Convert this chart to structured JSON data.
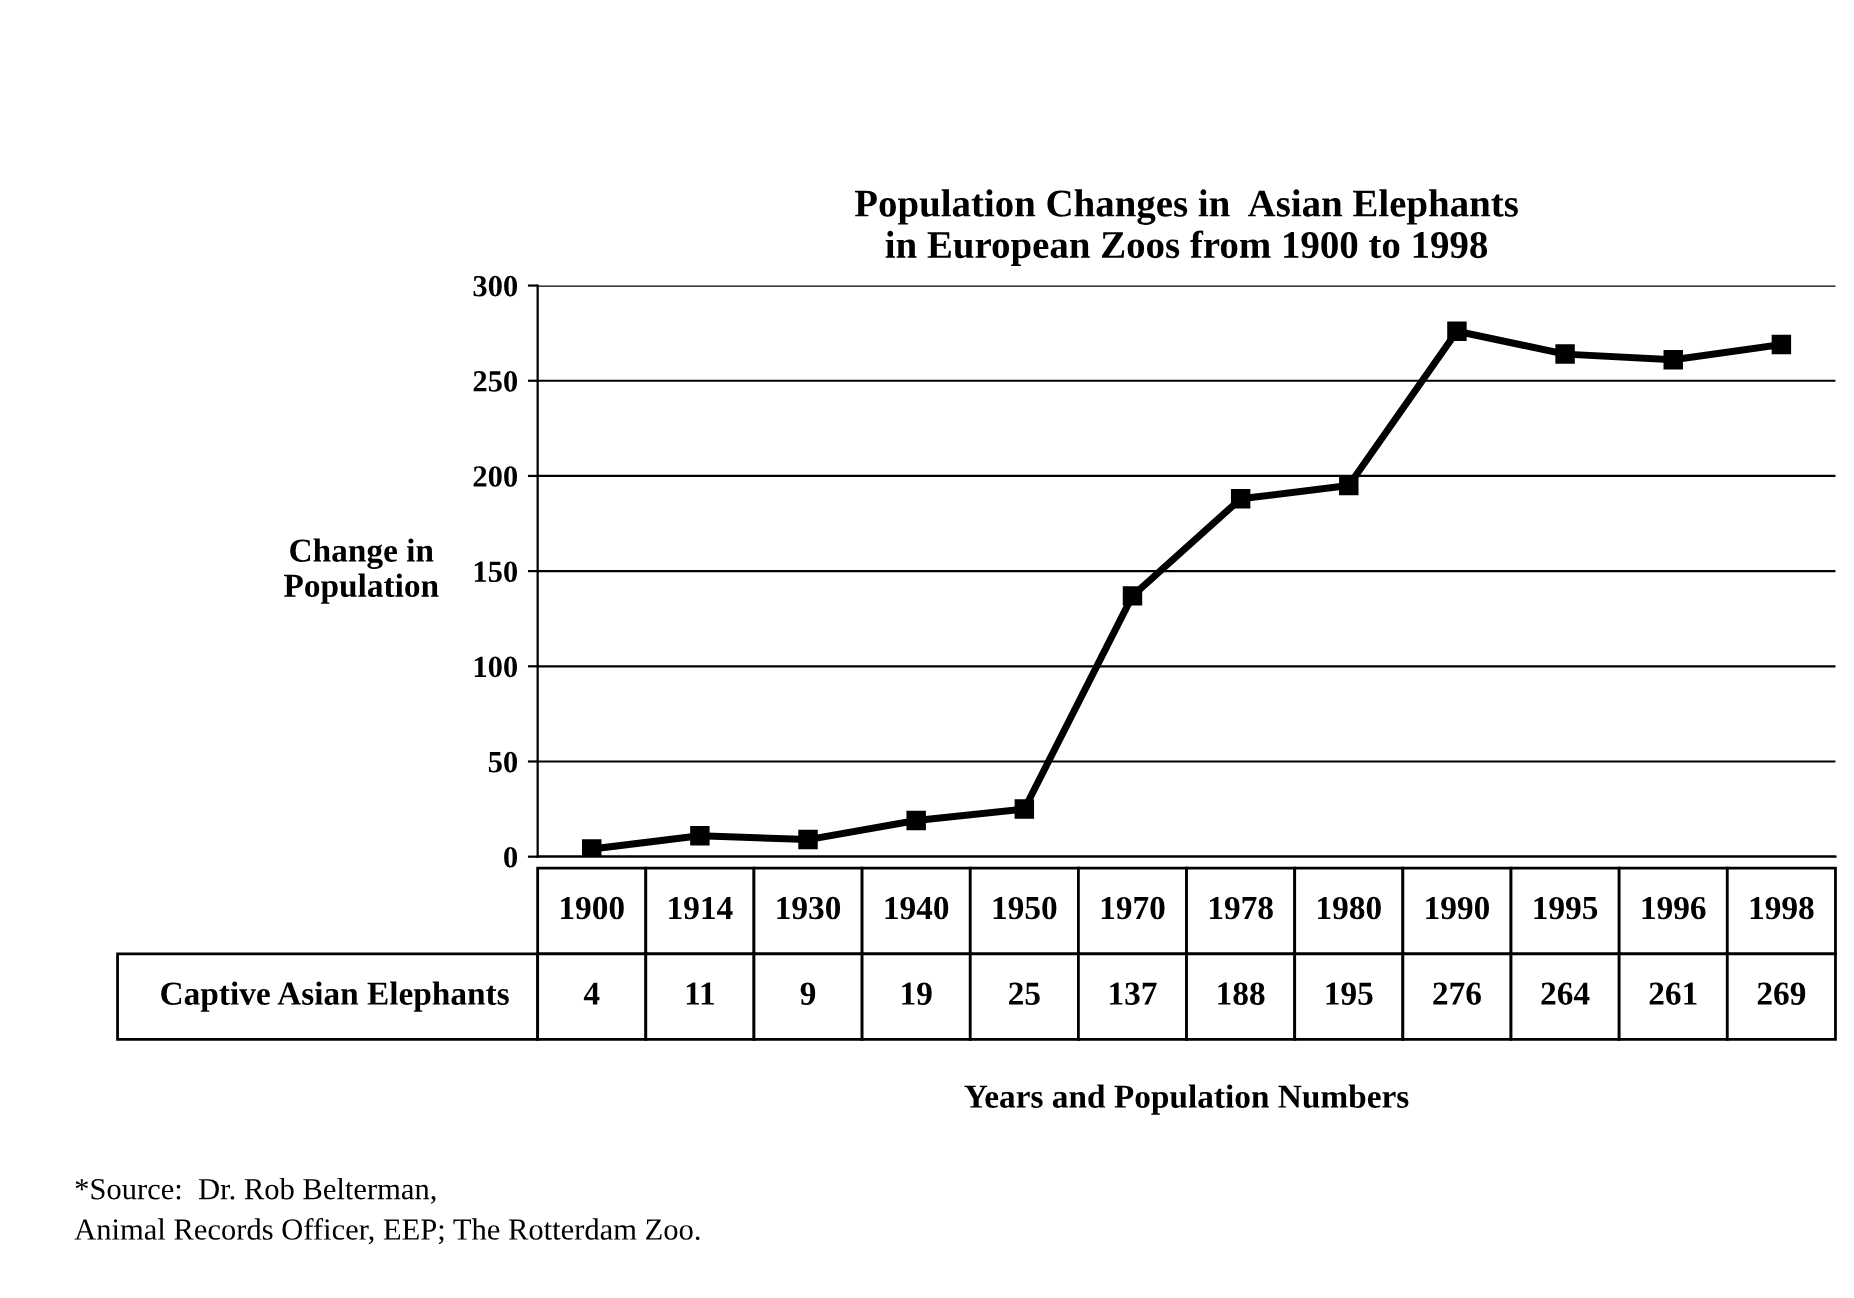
{
  "chart_data": {
    "type": "line",
    "title": "Population Changes in  Asian Elephants\nin European Zoos from 1900 to 1998",
    "ylabel": "Change in\nPopulation",
    "xlabel": "Years and Population Numbers",
    "categories": [
      "1900",
      "1914",
      "1930",
      "1940",
      "1950",
      "1970",
      "1978",
      "1980",
      "1990",
      "1995",
      "1996",
      "1998"
    ],
    "series": [
      {
        "name": "Captive Asian Elephants",
        "color": "#000000",
        "values": [
          4,
          11,
          9,
          19,
          25,
          137,
          188,
          195,
          276,
          264,
          261,
          269
        ]
      }
    ],
    "ylim": [
      0,
      300
    ],
    "yticks": [
      0,
      50,
      100,
      150,
      200,
      250,
      300
    ],
    "grid": "y",
    "marker": "square",
    "line_style": "solid",
    "data_labels": true,
    "legend": false,
    "annotations": [
      "*Source:  Dr. Rob Belterman,\nAnimal Records Officer, EEP; The Rotterdam Zoo."
    ]
  }
}
